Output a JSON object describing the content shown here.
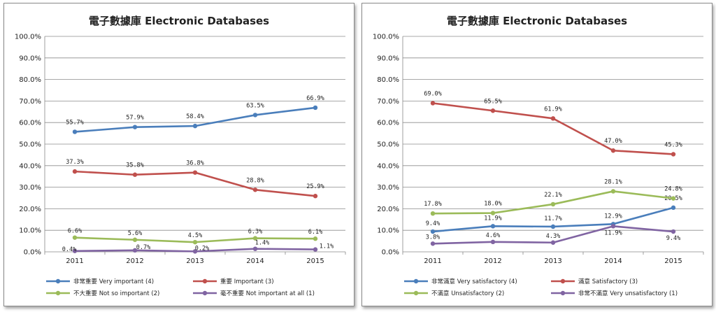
{
  "chart_data": [
    {
      "type": "line",
      "title": "電子數據庫  Electronic Databases",
      "x": [
        "2011",
        "2012",
        "2013",
        "2014",
        "2015"
      ],
      "ylim": [
        0,
        100
      ],
      "yticks": [
        "0.0%",
        "10.0%",
        "20.0%",
        "30.0%",
        "40.0%",
        "50.0%",
        "60.0%",
        "70.0%",
        "80.0%",
        "90.0%",
        "100.0%"
      ],
      "grid": true,
      "legend_position": "bottom",
      "series": [
        {
          "name": "非常重要 Very important (4)",
          "color": "#4a7ebb",
          "values": [
            55.7,
            57.9,
            58.4,
            63.5,
            66.9
          ],
          "labels": [
            "55.7%",
            "57.9%",
            "58.4%",
            "63.5%",
            "66.9%"
          ]
        },
        {
          "name": "重要 Important (3)",
          "color": "#c0504d",
          "values": [
            37.3,
            35.8,
            36.8,
            28.8,
            25.9
          ],
          "labels": [
            "37.3%",
            "35.8%",
            "36.8%",
            "28.8%",
            "25.9%"
          ]
        },
        {
          "name": "不大重要 Not so important (2)",
          "color": "#9bbb59",
          "values": [
            6.6,
            5.6,
            4.5,
            6.3,
            6.1
          ],
          "labels": [
            "6.6%",
            "5.6%",
            "4.5%",
            "6.3%",
            "6.1%"
          ]
        },
        {
          "name": "毫不重要 Not important at all (1)",
          "color": "#8064a2",
          "values": [
            0.4,
            0.7,
            0.2,
            1.4,
            1.1
          ],
          "labels": [
            "0.4%",
            "0.7%",
            "0.2%",
            "1.4%",
            "1.1%"
          ]
        }
      ]
    },
    {
      "type": "line",
      "title": "電子數據庫  Electronic Databases",
      "x": [
        "2011",
        "2012",
        "2013",
        "2014",
        "2015"
      ],
      "ylim": [
        0,
        100
      ],
      "yticks": [
        "0.0%",
        "10.0%",
        "20.0%",
        "30.0%",
        "40.0%",
        "50.0%",
        "60.0%",
        "70.0%",
        "80.0%",
        "90.0%",
        "100.0%"
      ],
      "grid": true,
      "legend_position": "bottom",
      "series": [
        {
          "name": "非常滿意 Very satisfactory (4)",
          "color": "#4a7ebb",
          "values": [
            9.4,
            11.9,
            11.7,
            12.9,
            20.5
          ],
          "labels": [
            "9.4%",
            "11.9%",
            "11.7%",
            "12.9%",
            "20.5%"
          ]
        },
        {
          "name": "滿意 Satisfactory (3)",
          "color": "#c0504d",
          "values": [
            69.0,
            65.5,
            61.9,
            47.0,
            45.3
          ],
          "labels": [
            "69.0%",
            "65.5%",
            "61.9%",
            "47.0%",
            "45.3%"
          ]
        },
        {
          "name": "不滿意 Unsatisfactory (2)",
          "color": "#9bbb59",
          "values": [
            17.8,
            18.0,
            22.1,
            28.1,
            24.8
          ],
          "labels": [
            "17.8%",
            "18.0%",
            "22.1%",
            "28.1%",
            "24.8%"
          ]
        },
        {
          "name": "非常不滿意 Very unsatisfactory (1)",
          "color": "#8064a2",
          "values": [
            3.8,
            4.6,
            4.3,
            11.9,
            9.4
          ],
          "labels": [
            "3.8%",
            "4.6%",
            "4.3%",
            "11.9%",
            "9.4%"
          ]
        }
      ]
    }
  ]
}
